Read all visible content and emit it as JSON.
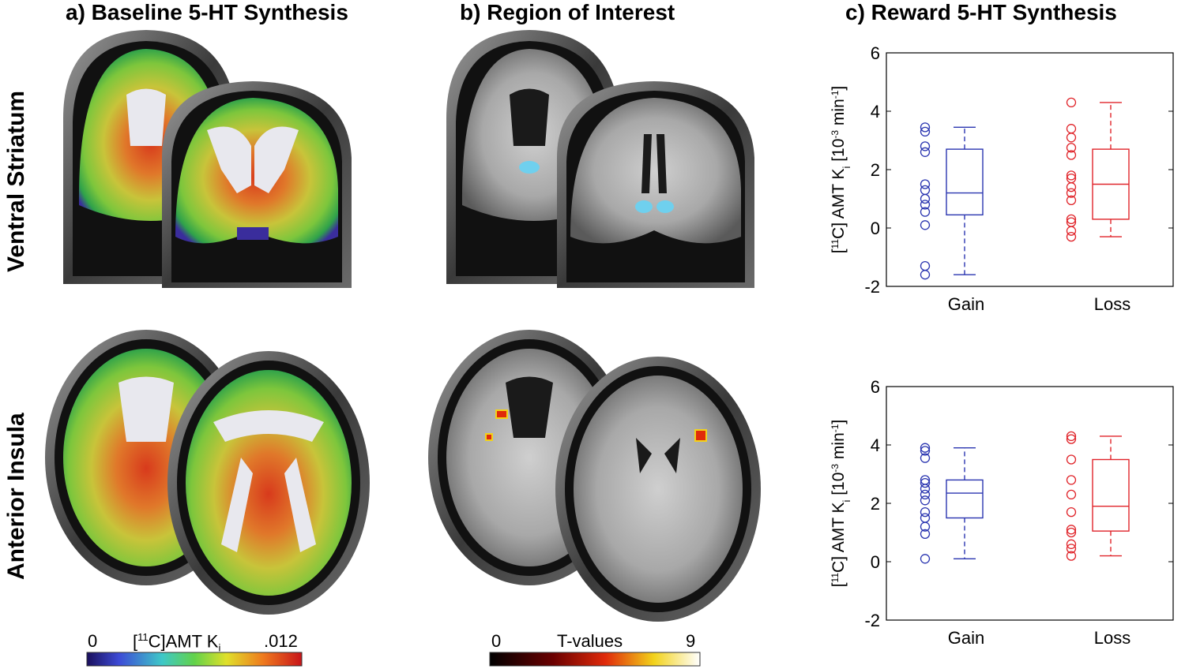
{
  "panels": {
    "a_title": "a) Baseline 5-HT Synthesis",
    "b_title": "b) Region of Interest",
    "c_title": "c) Reward 5-HT Synthesis"
  },
  "rows": {
    "top": "Ventral Striatum",
    "bottom": "Anterior Insula"
  },
  "colorbars": {
    "pet": {
      "min": "0",
      "label_main": "[",
      "label_sup": "11",
      "label_rest": "C]AMT  K",
      "label_sub": "i",
      "max": ".012"
    },
    "tvals": {
      "min": "0",
      "label": "T-values",
      "max": "9"
    }
  },
  "colors": {
    "gain": "#2a35b0",
    "loss": "#e0242a"
  },
  "chart_data": [
    {
      "type": "box",
      "region": "Ventral Striatum",
      "categories": [
        "Gain",
        "Loss"
      ],
      "ylabel_parts": [
        "[",
        "11",
        "C] AMT K",
        "i",
        "   [10",
        "-3",
        " min",
        "-1",
        "]"
      ],
      "ylim": [
        -2,
        6
      ],
      "yticks": [
        -2,
        0,
        2,
        4,
        6
      ],
      "grid": false,
      "series": [
        {
          "category": "Gain",
          "whisker_low": -1.6,
          "q1": 0.45,
          "median": 1.2,
          "q3": 2.7,
          "whisker_high": 3.45,
          "points": [
            3.45,
            3.3,
            2.8,
            2.6,
            1.5,
            1.3,
            1.0,
            0.8,
            0.55,
            0.1,
            -1.3,
            -1.6
          ]
        },
        {
          "category": "Loss",
          "whisker_low": -0.3,
          "q1": 0.3,
          "median": 1.5,
          "q3": 2.7,
          "whisker_high": 4.3,
          "points": [
            4.3,
            3.4,
            3.1,
            2.75,
            2.5,
            1.8,
            1.7,
            1.4,
            1.2,
            0.95,
            0.3,
            0.2,
            -0.1,
            -0.3
          ]
        }
      ]
    },
    {
      "type": "box",
      "region": "Anterior Insula",
      "categories": [
        "Gain",
        "Loss"
      ],
      "ylabel_parts": [
        "[",
        "11",
        "C] AMT K",
        "i",
        "   [10",
        "-3",
        " min",
        "-1",
        "]"
      ],
      "ylim": [
        -2,
        6
      ],
      "yticks": [
        -2,
        0,
        2,
        4,
        6
      ],
      "grid": false,
      "series": [
        {
          "category": "Gain",
          "whisker_low": 0.1,
          "q1": 1.5,
          "median": 2.35,
          "q3": 2.8,
          "whisker_high": 3.9,
          "points": [
            3.9,
            3.8,
            3.55,
            2.8,
            2.7,
            2.5,
            2.3,
            2.1,
            1.7,
            1.5,
            1.2,
            0.95,
            0.1
          ]
        },
        {
          "category": "Loss",
          "whisker_low": 0.2,
          "q1": 1.05,
          "median": 1.9,
          "q3": 3.5,
          "whisker_high": 4.3,
          "points": [
            4.3,
            4.2,
            3.5,
            2.8,
            2.3,
            1.7,
            1.1,
            1.0,
            0.6,
            0.45,
            0.2
          ]
        }
      ]
    }
  ]
}
